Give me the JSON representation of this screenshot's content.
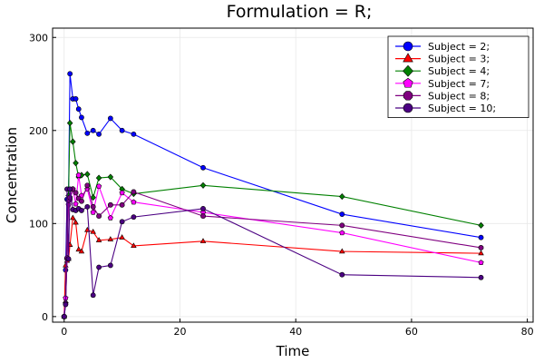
{
  "chart_data": {
    "type": "line",
    "title": "Formulation = R;",
    "xlabel": "Time",
    "ylabel": "Concentration",
    "xlim": [
      -2,
      81
    ],
    "ylim": [
      -6,
      310
    ],
    "xticks": [
      0,
      20,
      40,
      60,
      80
    ],
    "yticks": [
      0,
      100,
      200,
      300
    ],
    "grid": true,
    "legend_position": "top-right",
    "series": [
      {
        "name": "Subject = 2;",
        "color": "#0000ff",
        "marker": "circle",
        "x": [
          0,
          0.25,
          0.5,
          0.75,
          1,
          1.5,
          2,
          2.5,
          3,
          4,
          5,
          6,
          8,
          10,
          12,
          24,
          48,
          72
        ],
        "y": [
          0,
          50,
          126,
          126,
          261,
          234,
          234,
          223,
          214,
          197,
          200,
          196,
          213,
          200,
          196,
          160,
          110,
          85
        ]
      },
      {
        "name": "Subject = 3;",
        "color": "#ff0000",
        "marker": "triangle",
        "x": [
          0,
          0.25,
          0.5,
          0.75,
          1,
          1.5,
          2,
          2.5,
          3,
          4,
          5,
          6,
          8,
          10,
          12,
          24,
          48,
          72
        ],
        "y": [
          0,
          55,
          60,
          62,
          77,
          106,
          101,
          72,
          70,
          93,
          91,
          82,
          83,
          85,
          76,
          81,
          70,
          68
        ]
      },
      {
        "name": "Subject = 4;",
        "color": "#008000",
        "marker": "diamond",
        "x": [
          0,
          0.25,
          0.5,
          0.75,
          1,
          1.5,
          2,
          2.5,
          3,
          4,
          5,
          6,
          8,
          10,
          12,
          24,
          48,
          72
        ],
        "y": [
          0,
          15,
          62,
          130,
          208,
          188,
          165,
          150,
          152,
          153,
          128,
          149,
          150,
          137,
          132,
          141,
          129,
          98
        ]
      },
      {
        "name": "Subject = 7;",
        "color": "#ff00ff",
        "marker": "pentagon",
        "x": [
          0,
          0.25,
          0.5,
          0.75,
          1,
          1.5,
          2,
          2.5,
          3,
          4,
          5,
          6,
          8,
          10,
          12,
          24,
          48,
          72
        ],
        "y": [
          0,
          20,
          62,
          120,
          125,
          137,
          121,
          152,
          130,
          137,
          112,
          140,
          106,
          133,
          123,
          112,
          90,
          58
        ]
      },
      {
        "name": "Subject = 8;",
        "color": "#800080",
        "marker": "octagon",
        "x": [
          0,
          0.25,
          0.5,
          0.75,
          1,
          1.5,
          2,
          2.5,
          3,
          4,
          5,
          6,
          8,
          10,
          12,
          24,
          48,
          72
        ],
        "y": [
          0,
          14,
          63,
          125,
          128,
          137,
          133,
          127,
          124,
          141,
          118,
          108,
          120,
          120,
          134,
          108,
          98,
          74
        ]
      },
      {
        "name": "Subject = 10;",
        "color": "#4b0082",
        "marker": "circle",
        "x": [
          0,
          0.25,
          0.5,
          0.75,
          1,
          1.5,
          2,
          2.5,
          3,
          4,
          5,
          6,
          8,
          10,
          12,
          24,
          48,
          72
        ],
        "y": [
          0,
          13,
          137,
          62,
          137,
          115,
          114,
          116,
          114,
          118,
          23,
          53,
          55,
          102,
          107,
          116,
          45,
          42
        ]
      }
    ]
  }
}
